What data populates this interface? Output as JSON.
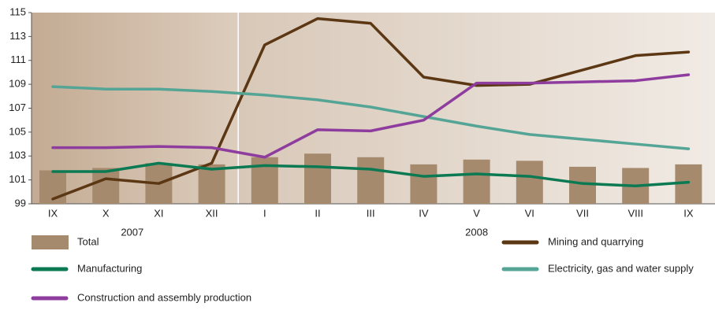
{
  "chart_data": {
    "type": "line",
    "categories": [
      "IX",
      "X",
      "XI",
      "XII",
      "I",
      "II",
      "III",
      "IV",
      "V",
      "VI",
      "VII",
      "VIII",
      "IX"
    ],
    "x_groups": [
      {
        "label": "2007",
        "span": 4
      },
      {
        "label": "2008",
        "span": 9
      }
    ],
    "ylim": [
      99,
      115
    ],
    "yticks": [
      99,
      101,
      103,
      105,
      107,
      109,
      111,
      113,
      115
    ],
    "series": [
      {
        "name": "Total",
        "type": "bar",
        "color": "#a68a6e",
        "values": [
          101.8,
          102.0,
          102.4,
          102.3,
          102.9,
          103.2,
          102.9,
          102.3,
          102.7,
          102.6,
          102.1,
          102.0,
          102.3
        ]
      },
      {
        "name": "Mining and quarrying",
        "type": "line",
        "color": "#5c3714",
        "values": [
          99.4,
          101.1,
          100.7,
          102.4,
          112.3,
          114.5,
          114.1,
          109.6,
          108.9,
          109.0,
          110.2,
          111.4,
          111.7
        ]
      },
      {
        "name": "Manufacturing",
        "type": "line",
        "color": "#0b7a53",
        "values": [
          101.7,
          101.7,
          102.4,
          101.9,
          102.2,
          102.1,
          101.9,
          101.3,
          101.5,
          101.3,
          100.7,
          100.5,
          100.8
        ]
      },
      {
        "name": "Electricity, gas and water supply",
        "type": "line",
        "color": "#55a596",
        "values": [
          108.8,
          108.6,
          108.6,
          108.4,
          108.1,
          107.7,
          107.1,
          106.3,
          105.5,
          104.8,
          104.4,
          104.0,
          103.6
        ]
      },
      {
        "name": "Construction and assembly production",
        "type": "line",
        "color": "#8e3d9f",
        "values": [
          103.7,
          103.7,
          103.8,
          103.7,
          102.9,
          105.2,
          105.1,
          106.0,
          109.1,
          109.1,
          109.2,
          109.3,
          109.8
        ]
      }
    ]
  }
}
